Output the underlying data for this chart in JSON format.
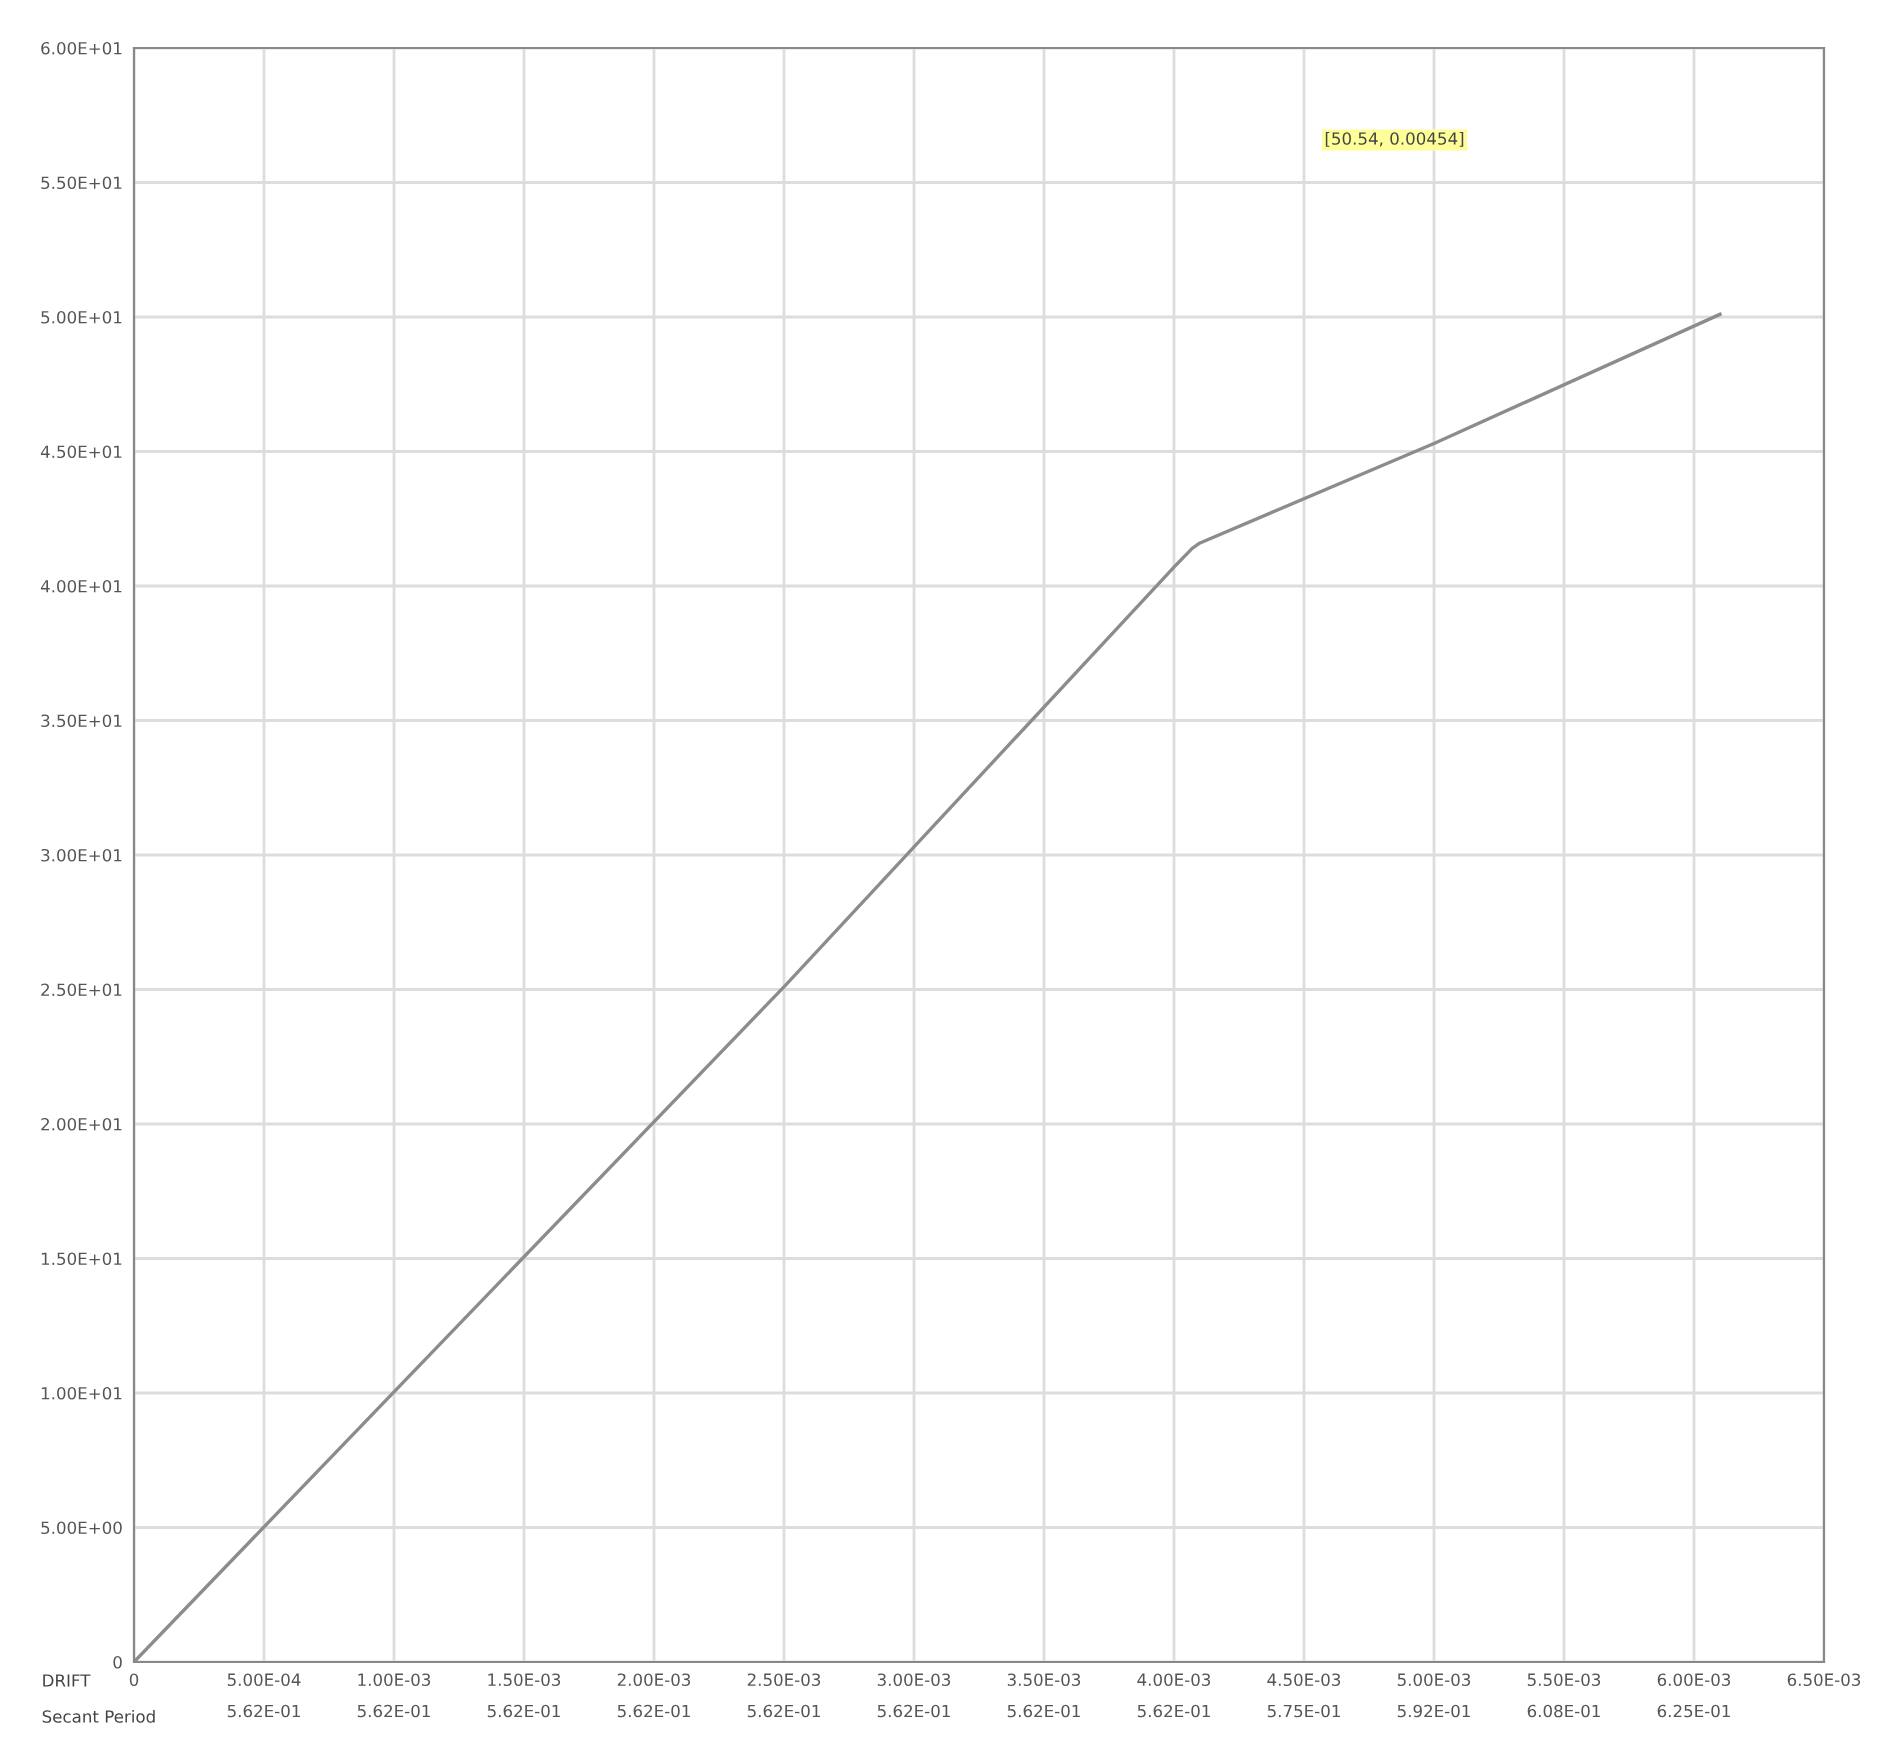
{
  "chart_data": {
    "type": "line",
    "x": [
      0,
      0.0025,
      0.004,
      0.00407,
      0.0041,
      0.005,
      0.0061
    ],
    "values": [
      0,
      25.1,
      40.7,
      41.4,
      41.6,
      45.3,
      50.1
    ],
    "color": "#8c8c8c",
    "xlim": [
      0,
      0.0065
    ],
    "ylim": [
      0,
      60
    ],
    "xticks": [
      {
        "value": 0,
        "label": "0\n "
      },
      {
        "value": 0.0005,
        "label": "5.00E-04\n5.62E-01"
      },
      {
        "value": 0.001,
        "label": "1.00E-03\n5.62E-01"
      },
      {
        "value": 0.0015,
        "label": "1.50E-03\n5.62E-01"
      },
      {
        "value": 0.002,
        "label": "2.00E-03\n5.62E-01"
      },
      {
        "value": 0.0025,
        "label": "2.50E-03\n5.62E-01"
      },
      {
        "value": 0.003,
        "label": "3.00E-03\n5.62E-01"
      },
      {
        "value": 0.0035,
        "label": "3.50E-03\n5.62E-01"
      },
      {
        "value": 0.004,
        "label": "4.00E-03\n5.62E-01"
      },
      {
        "value": 0.0045,
        "label": "4.50E-03\n5.75E-01"
      },
      {
        "value": 0.005,
        "label": "5.00E-03\n5.92E-01"
      },
      {
        "value": 0.0055,
        "label": "5.50E-03\n6.08E-01"
      },
      {
        "value": 0.006,
        "label": "6.00E-03\n6.25E-01"
      },
      {
        "value": 0.0065,
        "label": "6.50E-03\n "
      }
    ],
    "yticks": [
      0,
      {
        "value": 5,
        "label": "5.00E+00"
      },
      {
        "value": 10,
        "label": "1.00E+01"
      },
      {
        "value": 15,
        "label": "1.50E+01"
      },
      {
        "value": 20,
        "label": "2.00E+01"
      },
      {
        "value": 25,
        "label": "2.50E+01"
      },
      {
        "value": 30,
        "label": "3.00E+01"
      },
      {
        "value": 35,
        "label": "3.50E+01"
      },
      {
        "value": 40,
        "label": "4.00E+01"
      },
      {
        "value": 45,
        "label": "4.50E+01"
      },
      {
        "value": 50,
        "label": "5.00E+01"
      },
      {
        "value": 55,
        "label": "5.50E+01"
      },
      {
        "value": 60,
        "label": "6.00E+01"
      }
    ],
    "grid": true,
    "annotations": [
      "DRIFT",
      "Secant Period",
      "[50.54, 0.00454]"
    ]
  }
}
